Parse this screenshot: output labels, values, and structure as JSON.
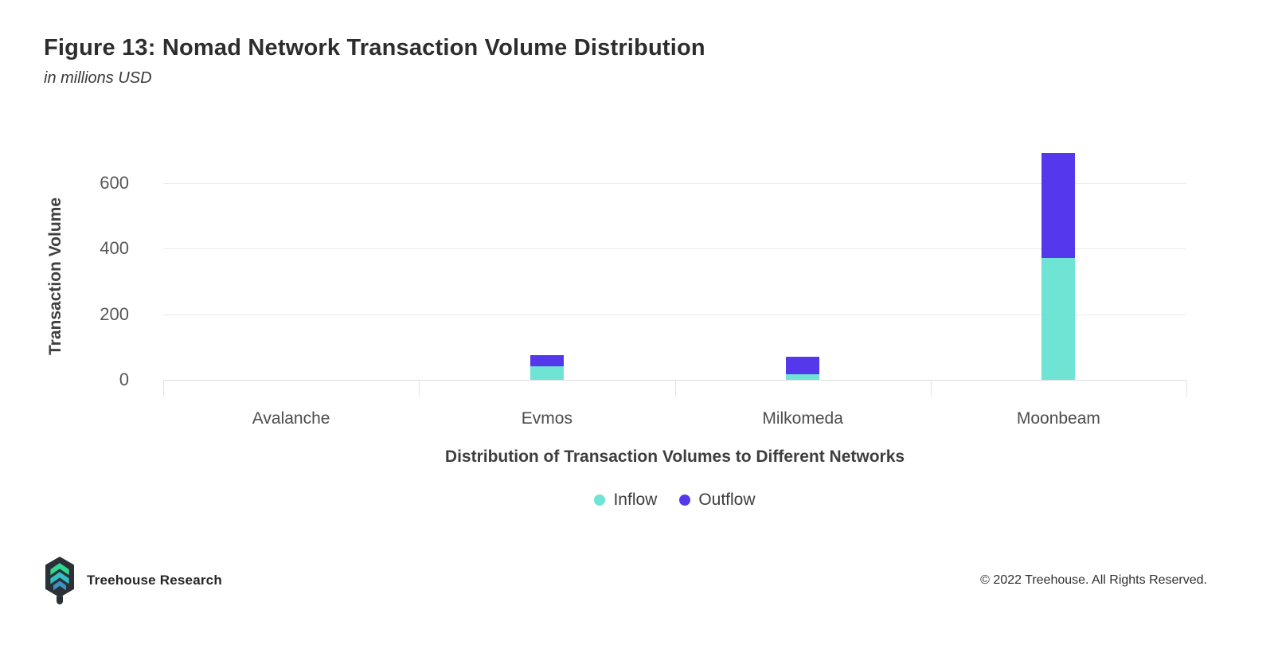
{
  "chart_data": {
    "type": "bar",
    "stacked": true,
    "title": "Figure 13: Nomad Network Transaction Volume Distribution",
    "subtitle": "in millions USD",
    "categories": [
      "Avalanche",
      "Evmos",
      "Milkomeda",
      "Moonbeam"
    ],
    "series": [
      {
        "name": "Inflow",
        "color": "#6FE3D4",
        "values": [
          0,
          42,
          18,
          370
        ]
      },
      {
        "name": "Outflow",
        "color": "#5638EC",
        "values": [
          0,
          34,
          53,
          320
        ]
      }
    ],
    "ylabel": "Transaction Volume",
    "xlabel": "Distribution of Transaction Volumes to Different Networks",
    "yticks": [
      0,
      200,
      400,
      600
    ],
    "ylim": [
      0,
      720
    ],
    "grid": true,
    "legend_position": "bottom"
  },
  "footer": {
    "brand": "Treehouse Research",
    "copyright": "© 2022 Treehouse. All Rights Reserved.",
    "logo_colors": {
      "badge": "#2B3036",
      "chevron_top": "#31D793",
      "chevron_mid": "#32BEC4",
      "chevron_bottom": "#3A93C4"
    }
  },
  "theme": {
    "background": "#FFFFFF",
    "grid_color": "#ECECEC",
    "axis_color": "#E0E0E0"
  }
}
